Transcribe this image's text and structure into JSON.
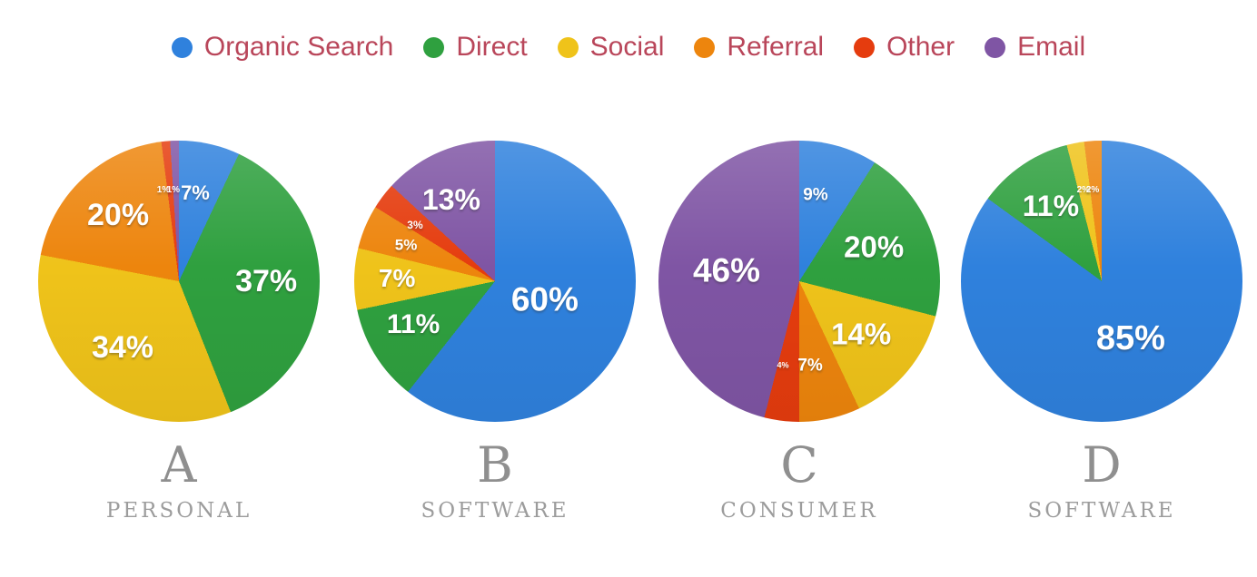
{
  "legend": {
    "text_color": "#B9465A",
    "items": [
      {
        "label": "Organic Search",
        "color": "#2F81DD"
      },
      {
        "label": "Direct",
        "color": "#2FA03F"
      },
      {
        "label": "Social",
        "color": "#EFC31A"
      },
      {
        "label": "Referral",
        "color": "#ED850D"
      },
      {
        "label": "Other",
        "color": "#E53C0E"
      },
      {
        "label": "Email",
        "color": "#7F55A4"
      }
    ]
  },
  "chart_data": [
    {
      "type": "pie",
      "title": "A",
      "subtitle": "PERSONAL",
      "start_angle": 0,
      "direction": "clockwise",
      "legend_position": "top",
      "slices": [
        {
          "name": "Organic Search",
          "value": 7,
          "label": "7%",
          "x": 55.8,
          "y": 18.7,
          "size": 22
        },
        {
          "name": "Direct",
          "value": 37,
          "label": "37%",
          "x": 81.0,
          "y": 50.0,
          "size": 34
        },
        {
          "name": "Social",
          "value": 34,
          "label": "34%",
          "x": 30.0,
          "y": 73.5,
          "size": 34
        },
        {
          "name": "Referral",
          "value": 20,
          "label": "20%",
          "x": 28.4,
          "y": 26.5,
          "size": 34
        },
        {
          "name": "Other",
          "value": 1,
          "label": "1%",
          "x": 44.5,
          "y": 17.7,
          "size": 10
        },
        {
          "name": "Email",
          "value": 1,
          "label": "1%",
          "x": 48.0,
          "y": 17.7,
          "size": 10
        }
      ]
    },
    {
      "type": "pie",
      "title": "B",
      "subtitle": "SOFTWARE",
      "start_angle": 0,
      "direction": "clockwise",
      "legend_position": "top",
      "slices": [
        {
          "name": "Organic Search",
          "value": 60,
          "label": "60%",
          "x": 67.7,
          "y": 56.5,
          "size": 37
        },
        {
          "name": "Direct",
          "value": 11,
          "label": "11%",
          "x": 21.0,
          "y": 65.5,
          "size": 30
        },
        {
          "name": "Social",
          "value": 7,
          "label": "7%",
          "x": 15.2,
          "y": 49.0,
          "size": 28
        },
        {
          "name": "Referral",
          "value": 5,
          "label": "5%",
          "x": 18.4,
          "y": 37.0,
          "size": 17
        },
        {
          "name": "Other",
          "value": 3,
          "label": "3%",
          "x": 21.6,
          "y": 30.0,
          "size": 12
        },
        {
          "name": "Email",
          "value": 13,
          "label": "13%",
          "x": 34.5,
          "y": 21.0,
          "size": 32
        }
      ]
    },
    {
      "type": "pie",
      "title": "C",
      "subtitle": "CONSUMER",
      "start_angle": 0,
      "direction": "clockwise",
      "legend_position": "top",
      "slices": [
        {
          "name": "Organic Search",
          "value": 9,
          "label": "9%",
          "x": 55.8,
          "y": 19.4,
          "size": 19
        },
        {
          "name": "Direct",
          "value": 20,
          "label": "20%",
          "x": 76.5,
          "y": 37.7,
          "size": 33
        },
        {
          "name": "Social",
          "value": 14,
          "label": "14%",
          "x": 72.0,
          "y": 68.7,
          "size": 33
        },
        {
          "name": "Referral",
          "value": 7,
          "label": "7%",
          "x": 53.9,
          "y": 80.0,
          "size": 19
        },
        {
          "name": "Other",
          "value": 4,
          "label": "4%",
          "x": 44.2,
          "y": 80.0,
          "size": 9
        },
        {
          "name": "Email",
          "value": 46,
          "label": "46%",
          "x": 24.2,
          "y": 46.1,
          "size": 37
        }
      ]
    },
    {
      "type": "pie",
      "title": "D",
      "subtitle": "SOFTWARE",
      "start_angle": 0,
      "direction": "clockwise",
      "legend_position": "top",
      "slices": [
        {
          "name": "Organic Search",
          "value": 85,
          "label": "85%",
          "x": 60.3,
          "y": 70.3,
          "size": 38
        },
        {
          "name": "Direct",
          "value": 11,
          "label": "11%",
          "x": 31.9,
          "y": 23.2,
          "size": 32
        },
        {
          "name": "Social",
          "value": 2,
          "label": "2%",
          "x": 43.5,
          "y": 17.7,
          "size": 10
        },
        {
          "name": "Referral",
          "value": 2,
          "label": "2%",
          "x": 46.8,
          "y": 17.7,
          "size": 10
        }
      ]
    }
  ]
}
